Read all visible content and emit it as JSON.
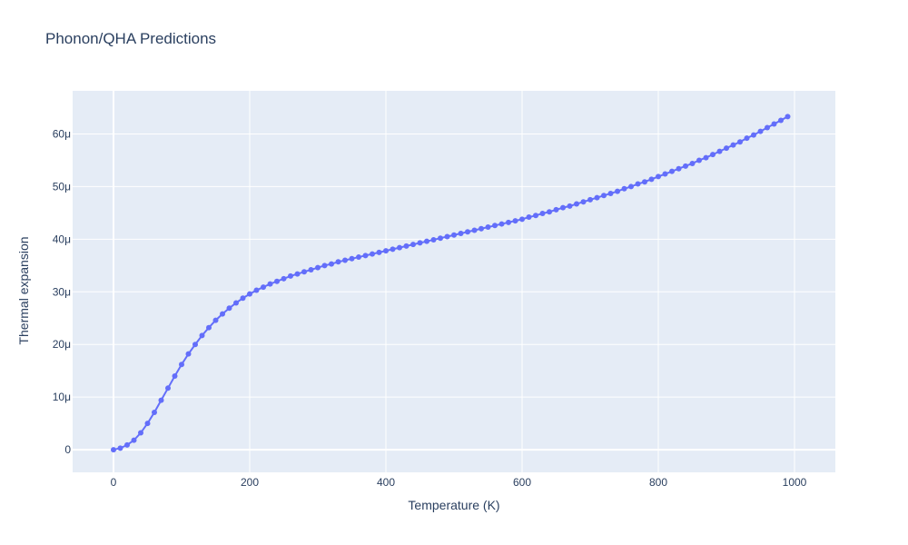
{
  "chart_data": {
    "type": "line",
    "title": "Phonon/QHA Predictions",
    "xlabel": "Temperature (K)",
    "ylabel": "Thermal expansion",
    "xlim": [
      -60,
      1060
    ],
    "ylim": [
      -4.3e-06,
      6.82e-05
    ],
    "x_ticks": [
      0,
      200,
      400,
      600,
      800,
      1000
    ],
    "x_tick_labels": [
      "0",
      "200",
      "400",
      "600",
      "800",
      "1000"
    ],
    "y_ticks": [
      0,
      1e-05,
      2e-05,
      3e-05,
      4e-05,
      5e-05,
      6e-05
    ],
    "y_tick_labels": [
      "0",
      "10μ",
      "20μ",
      "30μ",
      "40μ",
      "50μ",
      "60μ"
    ],
    "grid": true,
    "colors": {
      "series": "#636efa",
      "plot_bg": "#e5ecf6",
      "grid": "#ffffff"
    },
    "series": [
      {
        "mode": "lines+markers",
        "x": [
          0,
          10,
          20,
          30,
          40,
          50,
          60,
          70,
          80,
          90,
          100,
          110,
          120,
          130,
          140,
          150,
          160,
          170,
          180,
          190,
          200,
          210,
          220,
          230,
          240,
          250,
          260,
          270,
          280,
          290,
          300,
          310,
          320,
          330,
          340,
          350,
          360,
          370,
          380,
          390,
          400,
          410,
          420,
          430,
          440,
          450,
          460,
          470,
          480,
          490,
          500,
          510,
          520,
          530,
          540,
          550,
          560,
          570,
          580,
          590,
          600,
          610,
          620,
          630,
          640,
          650,
          660,
          670,
          680,
          690,
          700,
          710,
          720,
          730,
          740,
          750,
          760,
          770,
          780,
          790,
          800,
          810,
          820,
          830,
          840,
          850,
          860,
          870,
          880,
          890,
          900,
          910,
          920,
          930,
          940,
          950,
          960,
          970,
          980,
          990
        ],
        "y": [
          0,
          3e-07,
          9e-07,
          1.8e-06,
          3.2e-06,
          5e-06,
          7.1e-06,
          9.4e-06,
          1.17e-05,
          1.4e-05,
          1.62e-05,
          1.82e-05,
          2e-05,
          2.17e-05,
          2.32e-05,
          2.46e-05,
          2.58e-05,
          2.69e-05,
          2.79e-05,
          2.88e-05,
          2.96e-05,
          3.03e-05,
          3.09e-05,
          3.15e-05,
          3.2e-05,
          3.25e-05,
          3.3e-05,
          3.34e-05,
          3.38e-05,
          3.42e-05,
          3.46e-05,
          3.5e-05,
          3.53e-05,
          3.57e-05,
          3.6e-05,
          3.63e-05,
          3.66e-05,
          3.69e-05,
          3.72e-05,
          3.75e-05,
          3.78e-05,
          3.81e-05,
          3.84e-05,
          3.87e-05,
          3.9e-05,
          3.93e-05,
          3.96e-05,
          3.99e-05,
          4.02e-05,
          4.05e-05,
          4.08e-05,
          4.11e-05,
          4.14e-05,
          4.17e-05,
          4.2e-05,
          4.23e-05,
          4.26e-05,
          4.29e-05,
          4.32e-05,
          4.35e-05,
          4.38e-05,
          4.42e-05,
          4.45e-05,
          4.49e-05,
          4.52e-05,
          4.56e-05,
          4.6e-05,
          4.63e-05,
          4.67e-05,
          4.71e-05,
          4.75e-05,
          4.79e-05,
          4.83e-05,
          4.87e-05,
          4.91e-05,
          4.96e-05,
          5e-05,
          5.05e-05,
          5.09e-05,
          5.14e-05,
          5.19e-05,
          5.24e-05,
          5.29e-05,
          5.34e-05,
          5.39e-05,
          5.44e-05,
          5.5e-05,
          5.55e-05,
          5.61e-05,
          5.67e-05,
          5.73e-05,
          5.79e-05,
          5.85e-05,
          5.92e-05,
          5.98e-05,
          6.05e-05,
          6.12e-05,
          6.19e-05,
          6.26e-05,
          6.33e-05
        ]
      }
    ]
  }
}
